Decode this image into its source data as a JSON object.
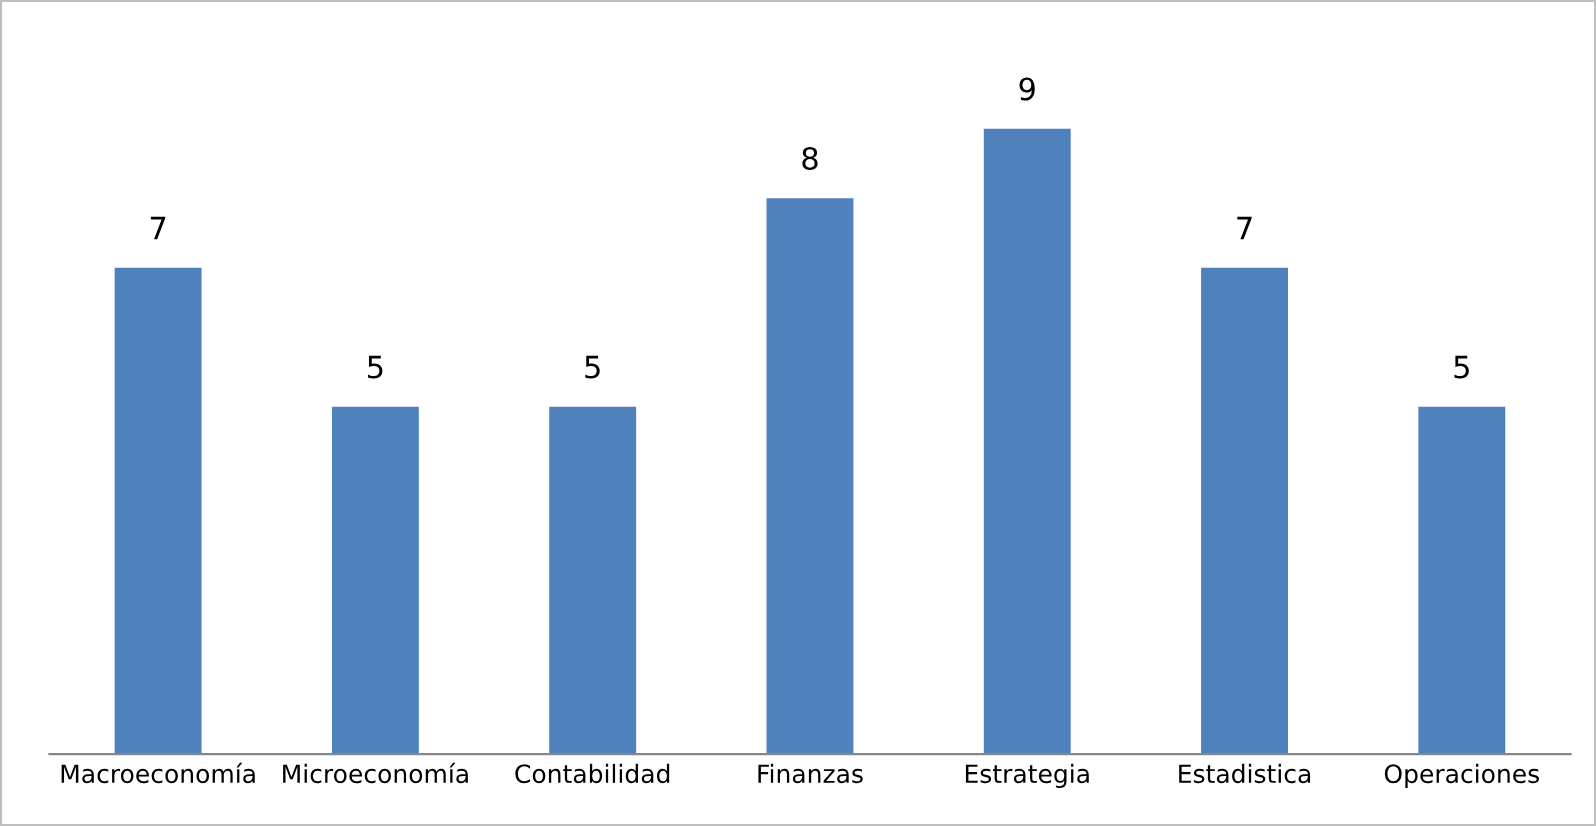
{
  "chart_data": {
    "type": "bar",
    "categories": [
      "Macroeconomía",
      "Microeconomía",
      "Contabilidad",
      "Finanzas",
      "Estrategia",
      "Estadistica",
      "Operaciones"
    ],
    "values": [
      7,
      5,
      5,
      8,
      9,
      7,
      5
    ],
    "color": "#4f81bd",
    "tick_labels": "x",
    "data_labels": true,
    "grid": false,
    "legend": false
  }
}
